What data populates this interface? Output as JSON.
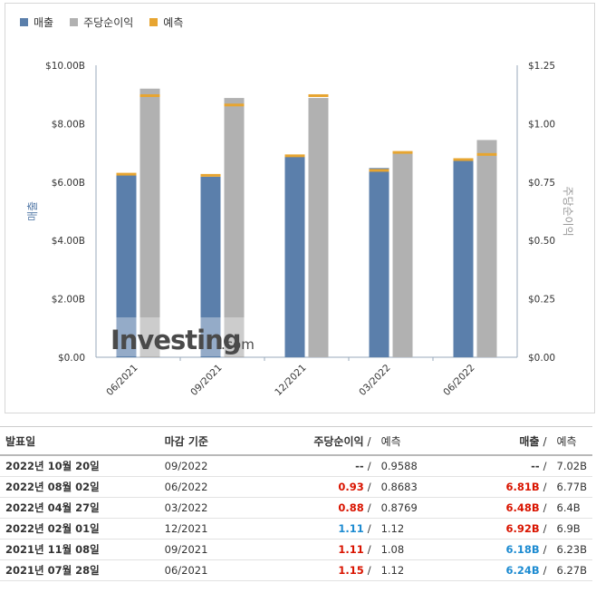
{
  "legend": {
    "revenue_label": "매출",
    "eps_label": "주당순이익",
    "forecast_label": "예측"
  },
  "colors": {
    "revenue": "#5b7fab",
    "eps": "#b1b1b1",
    "forecast": "#e7a531"
  },
  "chart_data": {
    "type": "bar",
    "categories": [
      "06/2021",
      "09/2021",
      "12/2021",
      "03/2022",
      "06/2022"
    ],
    "series": [
      {
        "name": "매출",
        "axis": "left",
        "values": [
          6.24,
          6.18,
          6.92,
          6.48,
          6.81
        ],
        "forecast": [
          6.27,
          6.23,
          6.9,
          6.4,
          6.77
        ]
      },
      {
        "name": "주당순이익",
        "axis": "right",
        "values": [
          1.15,
          1.11,
          1.11,
          0.88,
          0.93
        ],
        "forecast": [
          1.12,
          1.08,
          1.12,
          0.8769,
          0.8683
        ]
      }
    ],
    "ylabel": "매출",
    "y2label": "주당순이익",
    "ylim": [
      0,
      10
    ],
    "y2lim": [
      0,
      1.25
    ],
    "yticks": [
      "$0.00",
      "$2.00B",
      "$4.00B",
      "$6.00B",
      "$8.00B",
      "$10.00B"
    ],
    "y2ticks": [
      "$0.00",
      "$0.25",
      "$0.50",
      "$0.75",
      "$1.00",
      "$1.25"
    ],
    "grid": false,
    "legend_position": "top-left"
  },
  "watermark": {
    "brand": "Investing",
    "suffix": ".com"
  },
  "table": {
    "headers": {
      "date": "발표일",
      "period": "마감 기준",
      "eps": "주당순이익",
      "eps_sep": "/",
      "eps_forecast": "예측",
      "revenue": "매출",
      "revenue_sep": "/",
      "revenue_forecast": "예측"
    },
    "rows": [
      {
        "date": "2022년 10월 20일",
        "period": "09/2022",
        "eps": "--",
        "eps_color": "plain",
        "eps_forecast": "0.9588",
        "revenue": "--",
        "revenue_color": "plain",
        "revenue_forecast": "7.02B"
      },
      {
        "date": "2022년 08월 02일",
        "period": "06/2022",
        "eps": "0.93",
        "eps_color": "red",
        "eps_forecast": "0.8683",
        "revenue": "6.81B",
        "revenue_color": "red",
        "revenue_forecast": "6.77B"
      },
      {
        "date": "2022년 04월 27일",
        "period": "03/2022",
        "eps": "0.88",
        "eps_color": "red",
        "eps_forecast": "0.8769",
        "revenue": "6.48B",
        "revenue_color": "red",
        "revenue_forecast": "6.4B"
      },
      {
        "date": "2022년 02월 01일",
        "period": "12/2021",
        "eps": "1.11",
        "eps_color": "blue",
        "eps_forecast": "1.12",
        "revenue": "6.92B",
        "revenue_color": "red",
        "revenue_forecast": "6.9B"
      },
      {
        "date": "2021년 11월 08일",
        "period": "09/2021",
        "eps": "1.11",
        "eps_color": "red",
        "eps_forecast": "1.08",
        "revenue": "6.18B",
        "revenue_color": "blue",
        "revenue_forecast": "6.23B"
      },
      {
        "date": "2021년 07월 28일",
        "period": "06/2021",
        "eps": "1.15",
        "eps_color": "red",
        "eps_forecast": "1.12",
        "revenue": "6.24B",
        "revenue_color": "blue",
        "revenue_forecast": "6.27B"
      }
    ]
  }
}
